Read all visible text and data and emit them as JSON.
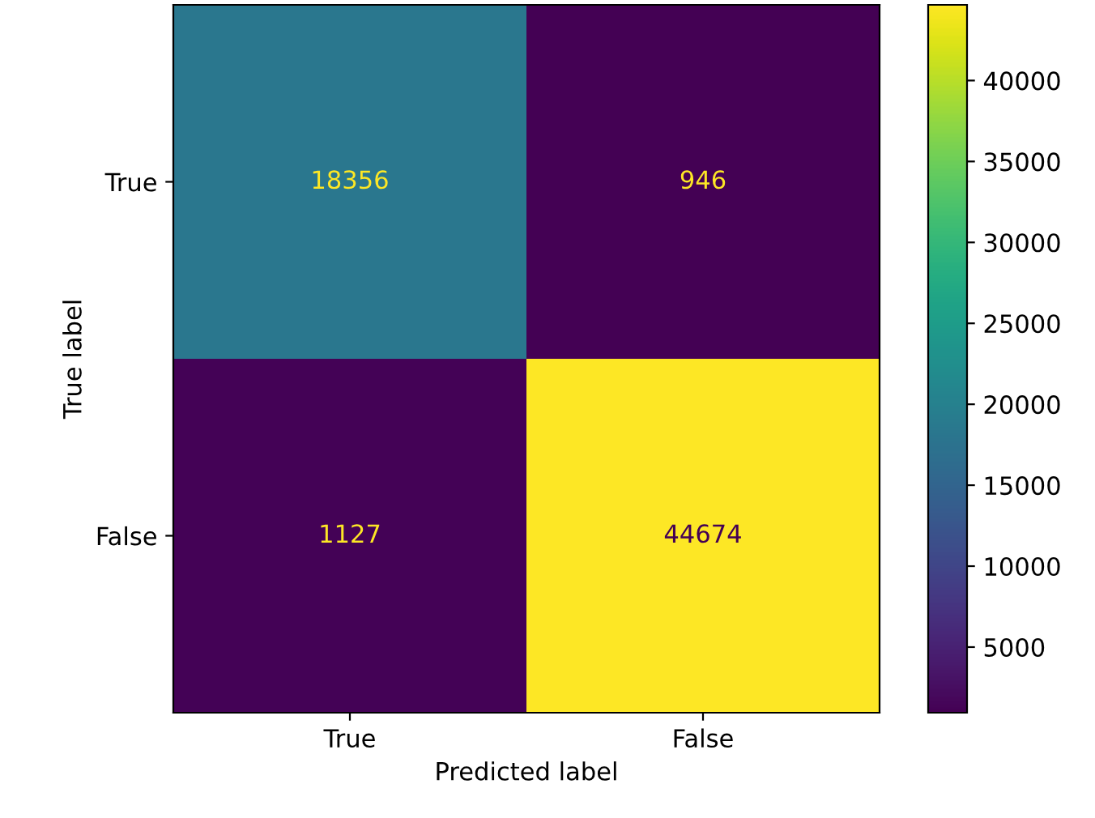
{
  "chart_data": {
    "type": "heatmap",
    "xlabel": "Predicted label",
    "ylabel": "True label",
    "categories": [
      "True",
      "False"
    ],
    "y_categories": [
      "True",
      "False"
    ],
    "cells": [
      [
        18356,
        946
      ],
      [
        1127,
        44674
      ]
    ],
    "clim": [
      946,
      44674
    ],
    "cticks": [
      5000,
      10000,
      15000,
      20000,
      25000,
      30000,
      35000,
      40000
    ],
    "data_labels": true
  }
}
